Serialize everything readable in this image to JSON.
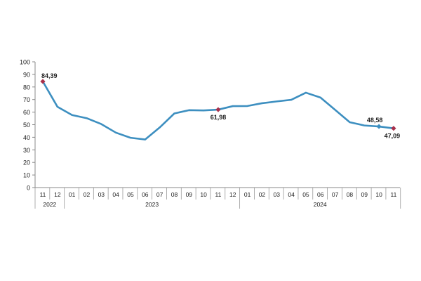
{
  "chart_data": {
    "type": "line",
    "x": [
      "11",
      "12",
      "01",
      "02",
      "03",
      "04",
      "05",
      "06",
      "07",
      "08",
      "09",
      "10",
      "11",
      "12",
      "01",
      "02",
      "03",
      "04",
      "05",
      "06",
      "07",
      "08",
      "09",
      "10",
      "11"
    ],
    "year_groups": [
      {
        "label": "2022",
        "span": 2
      },
      {
        "label": "2023",
        "span": 12
      },
      {
        "label": "2024",
        "span": 11
      }
    ],
    "series": [
      {
        "values": [
          84.39,
          64.27,
          57.68,
          55.18,
          50.52,
          43.68,
          39.59,
          38.21,
          47.83,
          58.94,
          61.53,
          61.36,
          61.98,
          64.77,
          64.86,
          67.07,
          68.5,
          69.8,
          75.45,
          71.6,
          61.78,
          51.97,
          49.38,
          48.58,
          47.09
        ],
        "color": "#3d8fc0"
      }
    ],
    "annotations": [
      {
        "index": 0,
        "label": "84,39",
        "marker_color": "#a8304b"
      },
      {
        "index": 12,
        "label": "61,98",
        "marker_color": "#a8304b"
      },
      {
        "index": 23,
        "label": "48,58",
        "marker_color": "#3d8fc0"
      },
      {
        "index": 24,
        "label": "47,09",
        "marker_color": "#a8304b"
      }
    ],
    "ylim": [
      0,
      100
    ],
    "yticks": [
      "0",
      "10",
      "20",
      "30",
      "40",
      "50",
      "60",
      "70",
      "80",
      "90",
      "100"
    ],
    "title": "",
    "xlabel": "",
    "ylabel": "",
    "grid": false,
    "legend": "none"
  }
}
